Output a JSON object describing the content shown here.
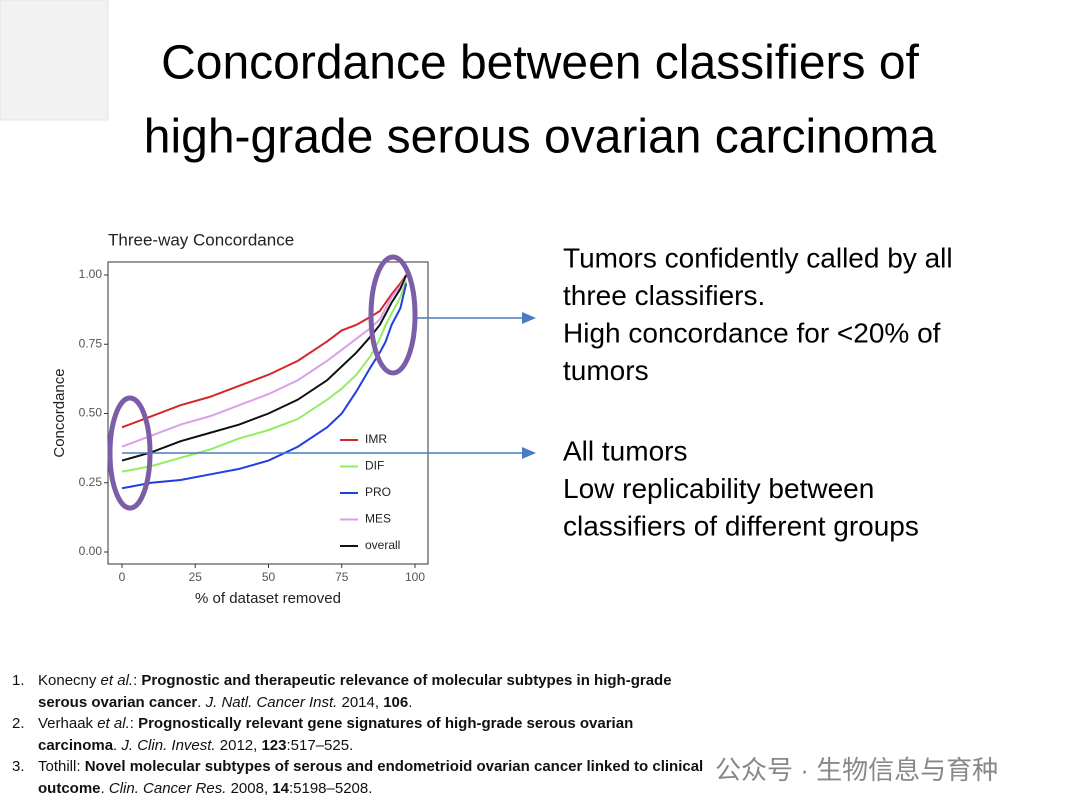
{
  "title": [
    "Concordance between classifiers of",
    "high-grade serous ovarian carcinoma"
  ],
  "chart_data": {
    "type": "line",
    "title": "Three-way Concordance",
    "x_label": "% of dataset removed",
    "y_label": "Concordance",
    "x": [
      0,
      10,
      20,
      30,
      40,
      50,
      60,
      70,
      75,
      80,
      85,
      88,
      90,
      92,
      95,
      97
    ],
    "series": [
      {
        "name": "IMR",
        "color": "#d62728",
        "values": [
          0.45,
          0.49,
          0.53,
          0.56,
          0.6,
          0.64,
          0.69,
          0.76,
          0.8,
          0.82,
          0.85,
          0.87,
          0.9,
          0.93,
          0.97,
          1.0
        ]
      },
      {
        "name": "DIF",
        "color": "#90ee60",
        "values": [
          0.29,
          0.31,
          0.34,
          0.37,
          0.41,
          0.44,
          0.48,
          0.55,
          0.59,
          0.64,
          0.71,
          0.77,
          0.82,
          0.86,
          0.92,
          0.98
        ]
      },
      {
        "name": "PRO",
        "color": "#1f3fe0",
        "values": [
          0.23,
          0.25,
          0.26,
          0.28,
          0.3,
          0.33,
          0.38,
          0.45,
          0.5,
          0.58,
          0.67,
          0.72,
          0.76,
          0.82,
          0.88,
          0.97
        ]
      },
      {
        "name": "MES",
        "color": "#d9a0e8",
        "values": [
          0.38,
          0.42,
          0.46,
          0.49,
          0.53,
          0.57,
          0.62,
          0.69,
          0.73,
          0.77,
          0.81,
          0.84,
          0.88,
          0.92,
          0.96,
          1.0
        ]
      },
      {
        "name": "overall",
        "color": "#111111",
        "values": [
          0.33,
          0.36,
          0.4,
          0.43,
          0.46,
          0.5,
          0.55,
          0.62,
          0.67,
          0.72,
          0.78,
          0.82,
          0.86,
          0.9,
          0.95,
          1.0
        ]
      }
    ],
    "xlim": [
      0,
      100
    ],
    "xticks": [
      0,
      25,
      50,
      75,
      100
    ],
    "ylim": [
      0,
      1
    ],
    "yticks": [
      {
        "value": 0,
        "label": "0.00"
      },
      {
        "value": 0.25,
        "label": "0.25"
      },
      {
        "value": 0.5,
        "label": "0.50"
      },
      {
        "value": 0.75,
        "label": "0.75"
      },
      {
        "value": 1,
        "label": "1.00"
      }
    ],
    "legend": "lower-right"
  },
  "notes": [
    [
      "Tumors confidently called by all",
      "three classifiers.",
      "High concordance for <20% of",
      "tumors"
    ],
    [
      "All tumors",
      "Low replicability between",
      "classifiers of different groups"
    ]
  ],
  "references": [
    {
      "number": "1.",
      "parts": [
        "Konecny ",
        "et al.",
        ": ",
        "Prognostic and therapeutic relevance of molecular subtypes in high-grade serous ovarian cancer",
        ". ",
        "J. Natl. Cancer Inst.",
        " 2014, ",
        "106",
        "."
      ]
    },
    {
      "number": "2.",
      "parts": [
        "Verhaak ",
        "et al.",
        ": ",
        "Prognostically relevant gene signatures of high-grade serous ovarian carcinoma",
        ". ",
        "J. Clin. Invest.",
        " 2012, ",
        "123",
        ":517–525."
      ]
    },
    {
      "number": "3.",
      "parts": [
        "Tothill",
        ": ",
        "Novel molecular subtypes of serous and endometrioid ovarian cancer linked to clinical outcome",
        ". ",
        "Clin. Cancer Res.",
        " 2008, ",
        "14",
        ":5198–5208."
      ]
    }
  ],
  "watermark": "公众号 · 生物信息与育种"
}
